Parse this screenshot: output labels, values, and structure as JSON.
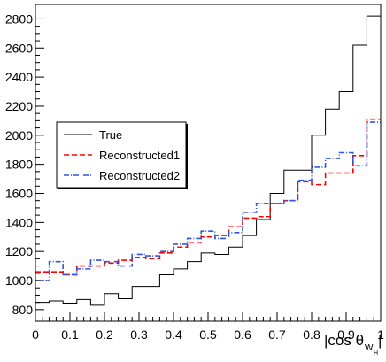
{
  "chart_data": {
    "type": "line",
    "title": "",
    "xlabel": "|cos θ",
    "xlabel_sub": "W",
    "xlabel_subsub": "H",
    "xlabel_close": "|",
    "ylabel": "",
    "xlim": [
      0,
      1
    ],
    "ylim": [
      720,
      2900
    ],
    "xticks": [
      0,
      0.1,
      0.2,
      0.3,
      0.4,
      0.5,
      0.6,
      0.7,
      0.8,
      0.9,
      1
    ],
    "xtick_labels": [
      "0",
      "0.1",
      "0.2",
      "0.3",
      "0.4",
      "0.5",
      "0.6",
      "0.7",
      "0.8",
      "0.9",
      "1"
    ],
    "yticks": [
      800,
      1000,
      1200,
      1400,
      1600,
      1800,
      2000,
      2200,
      2400,
      2600,
      2800
    ],
    "ytick_labels": [
      "800",
      "1000",
      "1200",
      "1400",
      "1600",
      "1800",
      "2000",
      "2200",
      "2400",
      "2600",
      "2800"
    ],
    "bin_edges": [
      0,
      0.04,
      0.08,
      0.12,
      0.16,
      0.2,
      0.24,
      0.28,
      0.32,
      0.36,
      0.4,
      0.44,
      0.48,
      0.52,
      0.56,
      0.6,
      0.64,
      0.68,
      0.72,
      0.76,
      0.8,
      0.84,
      0.88,
      0.92,
      0.96,
      1.0
    ],
    "legend_position": "middle-left",
    "grid": false,
    "series": [
      {
        "name": "True",
        "style": "solid",
        "color": "#000000",
        "values": [
          850,
          860,
          845,
          870,
          830,
          910,
          875,
          960,
          960,
          1040,
          1080,
          1130,
          1190,
          1180,
          1230,
          1310,
          1420,
          1600,
          1760,
          1760,
          2000,
          2180,
          2300,
          2620,
          2820
        ]
      },
      {
        "name": "Reconstructed1",
        "style": "dashed",
        "color": "#ff0000",
        "values": [
          1060,
          1060,
          1040,
          1100,
          1100,
          1120,
          1140,
          1160,
          1150,
          1190,
          1230,
          1260,
          1300,
          1310,
          1370,
          1430,
          1440,
          1530,
          1550,
          1680,
          1660,
          1740,
          1740,
          1860,
          2110
        ]
      },
      {
        "name": "Reconstructed2",
        "style": "dashdot",
        "color": "#3355dd",
        "values": [
          1000,
          1130,
          1040,
          1080,
          1140,
          1130,
          1100,
          1180,
          1170,
          1200,
          1250,
          1290,
          1340,
          1290,
          1330,
          1470,
          1530,
          1530,
          1550,
          1690,
          1780,
          1840,
          1880,
          1790,
          2090
        ]
      }
    ]
  }
}
